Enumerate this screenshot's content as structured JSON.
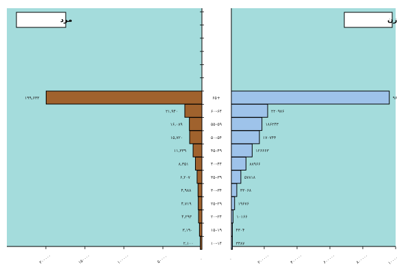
{
  "chart_data": {
    "type": "bar",
    "categories": [
      "۶۵+",
      "۶۰–۶۴",
      "۵۵–۵۹",
      "۵۰–۵۴",
      "۴۵–۴۹",
      "۴۰–۴۴",
      "۳۵–۳۹",
      "۳۰–۳۴",
      "۲۵–۲۹",
      "۲۰–۲۴",
      "۱۵–۱۹",
      "۱۰–۱۴"
    ],
    "series": [
      {
        "name": "مرد",
        "values": [
          199633,
          21940,
          16089,
          15720,
          11339,
          8351,
          6207,
          4988,
          4719,
          4293,
          3190,
          2100
        ],
        "labels": [
          "۱۹۹,۶۳۳",
          "۲۱,۹۴۰",
          "۱۶,۰۸۹",
          "۱۵,۷۲۰",
          "۱۱,۳۳۹",
          "۸,۳۵۱",
          "۶,۲۰۷",
          "۴,۹۸۸",
          "۴,۷۱۹",
          "۴,۲۹۳",
          "۳,۱۹۰",
          "۲,۱۰۰"
        ],
        "color": "#a0622d"
      },
      {
        "name": "زن",
        "values": [
          961388,
          220976,
          186243,
          170744,
          126663,
          88966,
          57818,
          33068,
          19676,
          10166,
          4304,
          3387
        ],
        "labels": [
          "۹۶۱۳۸۸",
          "۲۲۰۹۷۶",
          "۱۸۶۲۴۳",
          "۱۷۰۷۴۴",
          "۱۲۶۶۶۳",
          "۸۸۹۶۶",
          "۵۷۸۱۸",
          "۳۳۰۶۸",
          "۱۹۶۷۶",
          "۱۰۱۶۶",
          "۴۳۰۴",
          "۳۳۸۷"
        ],
        "color": "#9ec3ea"
      }
    ],
    "male_axis": {
      "max": 250000,
      "ticks": [
        200000,
        150000,
        100000,
        50000,
        0
      ],
      "tick_labels": [
        "۲۰۰۰۰۰",
        "۱۵۰۰۰۰",
        "۱۰۰۰۰۰",
        "۵۰۰۰۰",
        "۰"
      ]
    },
    "female_axis": {
      "max": 1000000,
      "ticks": [
        0,
        200000,
        400000,
        600000,
        800000,
        1000000
      ],
      "tick_labels": [
        "۰",
        "۲۰۰۰۰۰",
        "۴۰۰۰۰۰",
        "۶۰۰۰۰۰",
        "۸۰۰۰۰۰",
        "۱۰۰۰۰۰۰"
      ]
    },
    "title": "",
    "xlabel": "",
    "ylabel": "",
    "grid": false,
    "legend": "none",
    "plot_background": "#a4dcdc"
  }
}
